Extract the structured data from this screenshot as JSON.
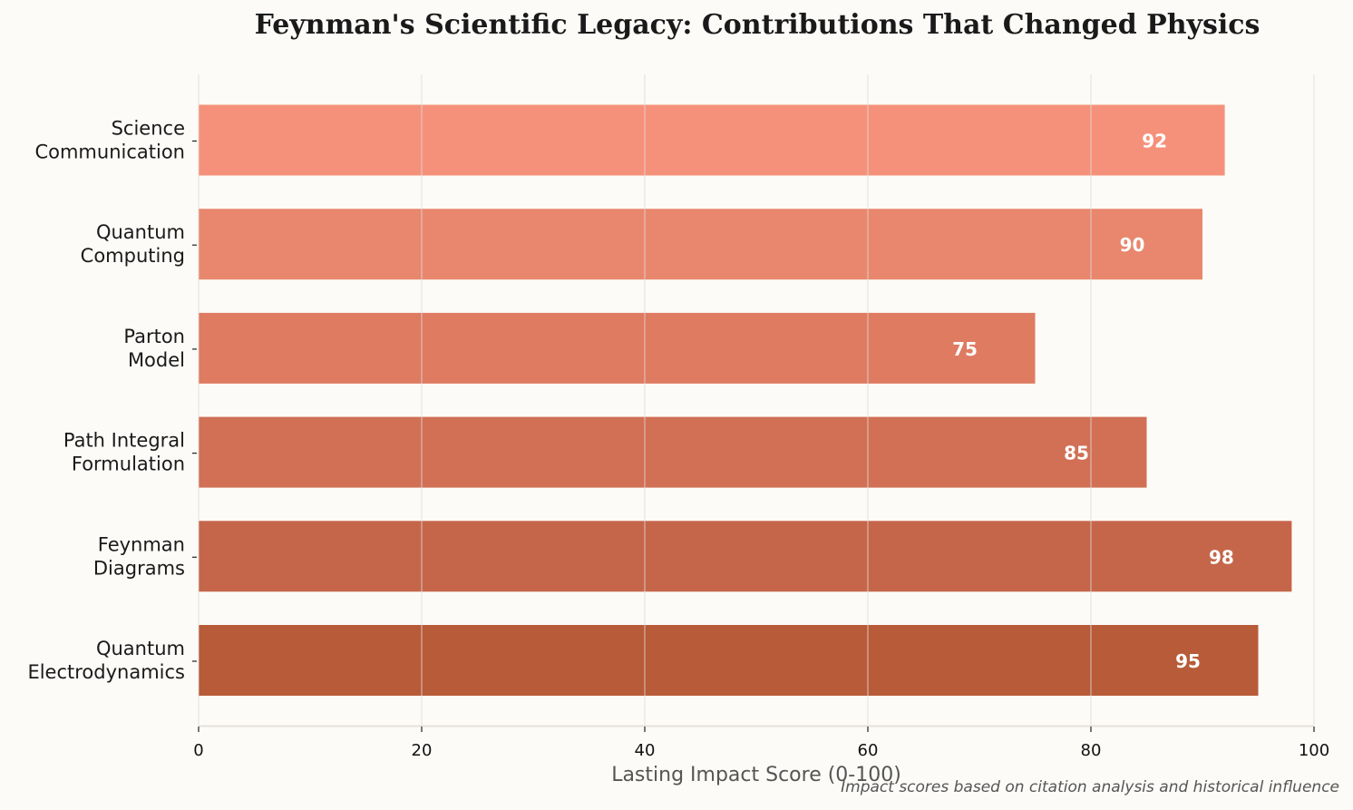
{
  "chart_data": {
    "type": "bar",
    "orientation": "horizontal",
    "title": "Feynman's Scientific Legacy: Contributions That Changed Physics",
    "xlabel": "Lasting Impact Score (0-100)",
    "ylabel": "",
    "annotation": "Impact scores based on citation analysis and historical influence",
    "categories": [
      "Quantum\nElectrodynamics",
      "Feynman\nDiagrams",
      "Path Integral\nFormulation",
      "Parton\nModel",
      "Quantum\nComputing",
      "Science\nCommunication"
    ],
    "values": [
      95,
      98,
      85,
      75,
      90,
      92
    ],
    "colors": [
      "#b85b38",
      "#c5664a",
      "#d17055",
      "#de7b61",
      "#e8876d",
      "#f5917a"
    ],
    "xlim": [
      0,
      100
    ],
    "xticks": [
      0,
      20,
      40,
      60,
      80,
      100
    ],
    "grid": "x",
    "data_labels": true
  }
}
